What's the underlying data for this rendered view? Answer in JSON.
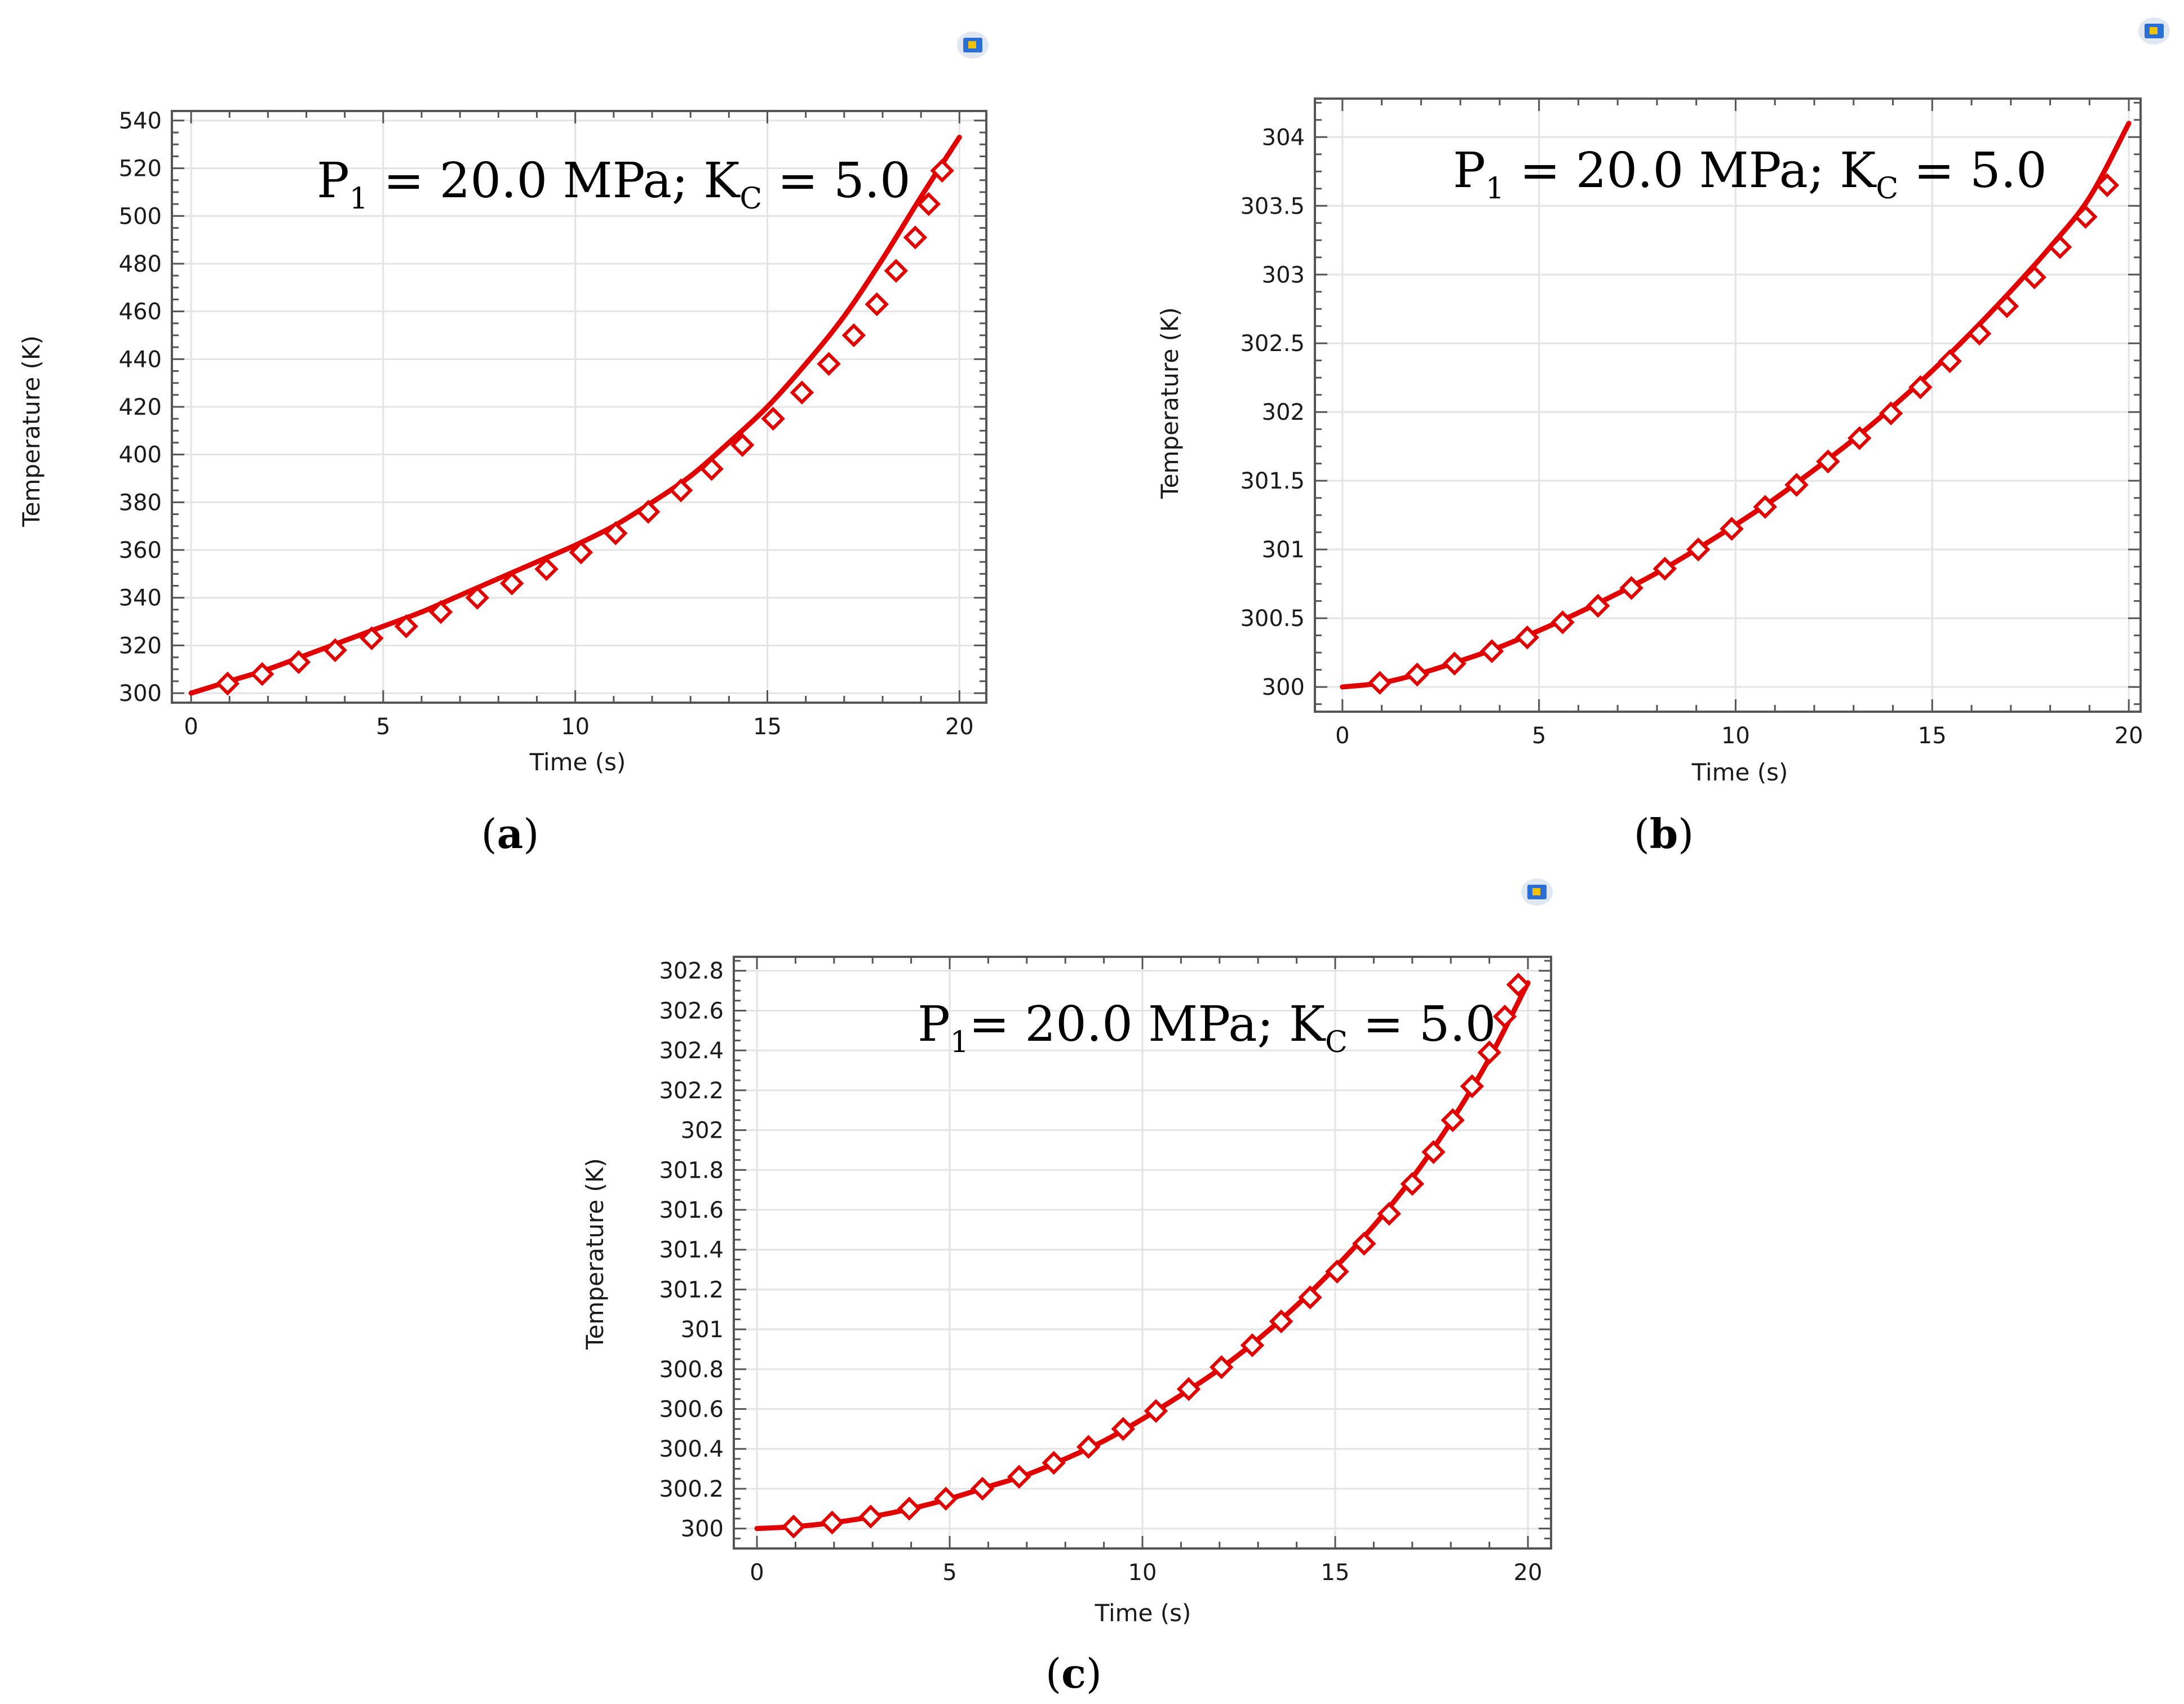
{
  "colors": {
    "series": "#e00000",
    "grid": "#e4e4e4",
    "axis": "#555555",
    "icon_blue": "#2a6fd6",
    "icon_yellow": "#f2c200"
  },
  "chart_data": [
    {
      "id": "a",
      "type": "line",
      "panel_label": "a",
      "title": "",
      "annotation": {
        "p": "P",
        "p_sub": "1",
        "mid": " = 20.0 MPa; K",
        "k_sub": "C",
        "tail": " = 5.0"
      },
      "xlabel": "Time (s)",
      "ylabel": "Temperature (K)",
      "xlim": [
        -0.5,
        20.7
      ],
      "ylim": [
        296,
        544
      ],
      "xticks": [
        0,
        5,
        10,
        15,
        20
      ],
      "xtick_labels": [
        "0",
        "5",
        "10",
        "15",
        "20"
      ],
      "yticks": [
        300,
        320,
        340,
        360,
        380,
        400,
        420,
        440,
        460,
        480,
        500,
        520,
        540
      ],
      "ytick_labels": [
        "300",
        "320",
        "340",
        "360",
        "380",
        "400",
        "420",
        "440",
        "460",
        "480",
        "500",
        "520",
        "540"
      ],
      "series": [
        {
          "name": "Temperature",
          "x": [
            0,
            1,
            2,
            3,
            4,
            5,
            6,
            7,
            8,
            9,
            10,
            11,
            12,
            13,
            14,
            15,
            16,
            17,
            18,
            19,
            20
          ],
          "y": [
            300,
            305,
            310,
            316,
            322,
            328,
            334,
            341,
            348,
            355,
            362,
            370,
            380,
            391,
            405,
            420,
            438,
            458,
            482,
            508,
            533
          ]
        }
      ],
      "markers": {
        "x": [
          0.95,
          1.85,
          2.8,
          3.75,
          4.7,
          5.6,
          6.5,
          7.45,
          8.35,
          9.25,
          10.15,
          11.05,
          11.9,
          12.75,
          13.55,
          14.35,
          15.15,
          15.9,
          16.6,
          17.25,
          17.85,
          18.35,
          18.85,
          19.2,
          19.55
        ],
        "y": [
          304,
          308,
          313,
          318,
          323,
          328,
          334,
          340,
          346,
          352,
          359,
          367,
          376,
          385,
          394,
          404,
          415,
          426,
          438,
          450,
          463,
          477,
          491,
          505,
          519
        ]
      },
      "grid": true
    },
    {
      "id": "b",
      "type": "line",
      "panel_label": "b",
      "title": "",
      "annotation": {
        "p": "P",
        "p_sub": "1",
        "mid": " = 20.0 MPa; K",
        "k_sub": "C",
        "tail": " = 5.0"
      },
      "xlabel": "Time (s)",
      "ylabel": "Temperature (K)",
      "xlim": [
        -0.7,
        20.3
      ],
      "ylim": [
        299.82,
        304.28
      ],
      "xticks": [
        0,
        5,
        10,
        15,
        20
      ],
      "xtick_labels": [
        "0",
        "5",
        "10",
        "15",
        "20"
      ],
      "yticks": [
        300,
        300.5,
        301,
        301.5,
        302,
        302.5,
        303,
        303.5,
        304
      ],
      "ytick_labels": [
        "300",
        "300.5",
        "301",
        "301.5",
        "302",
        "302.5",
        "303",
        "303.5",
        "304"
      ],
      "series": [
        {
          "name": "Temperature",
          "x": [
            0,
            1,
            2,
            3,
            4,
            5,
            6,
            7,
            8,
            9,
            10,
            11,
            12,
            13,
            14,
            15,
            16,
            17,
            18,
            19,
            20
          ],
          "y": [
            300,
            300.03,
            300.1,
            300.19,
            300.29,
            300.41,
            300.54,
            300.68,
            300.83,
            301.0,
            301.18,
            301.37,
            301.58,
            301.8,
            302.04,
            302.3,
            302.58,
            302.88,
            303.2,
            303.56,
            304.1
          ]
        }
      ],
      "markers": {
        "x": [
          0.95,
          1.9,
          2.85,
          3.8,
          4.7,
          5.6,
          6.5,
          7.35,
          8.2,
          9.05,
          9.9,
          10.75,
          11.55,
          12.35,
          13.15,
          13.95,
          14.7,
          15.45,
          16.2,
          16.9,
          17.6,
          18.25,
          18.9,
          19.45
        ],
        "y": [
          300.03,
          300.09,
          300.17,
          300.26,
          300.36,
          300.47,
          300.59,
          300.72,
          300.86,
          301.0,
          301.15,
          301.31,
          301.47,
          301.64,
          301.81,
          301.99,
          302.18,
          302.37,
          302.57,
          302.77,
          302.98,
          303.2,
          303.42,
          303.65
        ]
      },
      "grid": true
    },
    {
      "id": "c",
      "type": "line",
      "panel_label": "c",
      "title": "",
      "annotation": {
        "p": "P",
        "p_sub": "1",
        "mid": "= 20.0 MPa; K",
        "k_sub": "C",
        "tail": " = 5.0"
      },
      "xlabel": "Time (s)",
      "ylabel": "Temperature (K)",
      "xlim": [
        -0.6,
        20.6
      ],
      "ylim": [
        299.9,
        302.87
      ],
      "xticks": [
        0,
        5,
        10,
        15,
        20
      ],
      "xtick_labels": [
        "0",
        "5",
        "10",
        "15",
        "20"
      ],
      "yticks": [
        300,
        300.2,
        300.4,
        300.6,
        300.8,
        301,
        301.2,
        301.4,
        301.6,
        301.8,
        302,
        302.2,
        302.4,
        302.6,
        302.8
      ],
      "ytick_labels": [
        "300",
        "300.2",
        "300.4",
        "300.6",
        "300.8",
        "301",
        "301.2",
        "301.4",
        "301.6",
        "301.8",
        "302",
        "302.2",
        "302.4",
        "302.6",
        "302.8"
      ],
      "series": [
        {
          "name": "Temperature",
          "x": [
            0,
            1,
            2,
            3,
            4,
            5,
            6,
            7,
            8,
            9,
            10,
            11,
            12,
            13,
            14,
            15,
            16,
            17,
            18,
            19,
            20
          ],
          "y": [
            300,
            300.01,
            300.03,
            300.06,
            300.1,
            300.15,
            300.21,
            300.27,
            300.35,
            300.44,
            300.55,
            300.67,
            300.8,
            300.95,
            301.12,
            301.31,
            301.52,
            301.76,
            302.04,
            302.36,
            302.74
          ]
        }
      ],
      "markers": {
        "x": [
          0.95,
          1.95,
          2.95,
          3.95,
          4.9,
          5.85,
          6.8,
          7.7,
          8.6,
          9.5,
          10.35,
          11.2,
          12.05,
          12.85,
          13.6,
          14.35,
          15.05,
          15.75,
          16.4,
          17.0,
          17.55,
          18.05,
          18.55,
          19.0,
          19.4,
          19.75
        ],
        "y": [
          300.01,
          300.03,
          300.06,
          300.1,
          300.15,
          300.2,
          300.26,
          300.33,
          300.41,
          300.5,
          300.59,
          300.7,
          300.81,
          300.92,
          301.04,
          301.16,
          301.29,
          301.43,
          301.58,
          301.73,
          301.89,
          302.05,
          302.22,
          302.39,
          302.57,
          302.73
        ]
      },
      "grid": true
    }
  ]
}
